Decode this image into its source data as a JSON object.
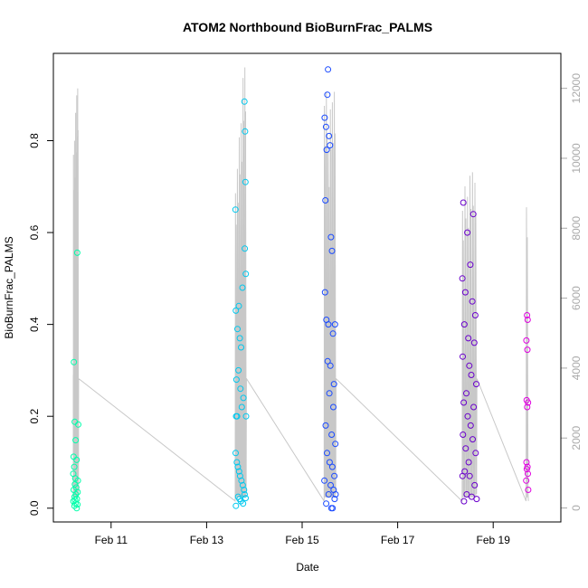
{
  "chart_data": {
    "type": "scatter",
    "title": "ATOM2 Northbound BioBurnFrac_PALMS",
    "xlabel": "Date",
    "ylabel": "BioBurnFrac_PALMS",
    "xlim": [
      "2017-02-09 19:00",
      "2017-02-20 10:00"
    ],
    "ylim": [
      -0.03,
      0.99
    ],
    "y2lim": [
      -400,
      13000
    ],
    "x_ticks": [
      {
        "date": "2017-02-11",
        "label": "Feb 11"
      },
      {
        "date": "2017-02-13",
        "label": "Feb 13"
      },
      {
        "date": "2017-02-15",
        "label": "Feb 15"
      },
      {
        "date": "2017-02-17",
        "label": "Feb 17"
      },
      {
        "date": "2017-02-19",
        "label": "Feb 19"
      }
    ],
    "y_ticks": [
      "0.0",
      "0.2",
      "0.4",
      "0.6",
      "0.8"
    ],
    "y2_ticks": [
      "0",
      "2000",
      "4000",
      "6000",
      "8000",
      "10000",
      "12000"
    ],
    "grid": false,
    "series": [
      {
        "color": "#00ffaa",
        "axis": "left",
        "points": [
          [
            "2017-02-10 05:20",
            0.318
          ],
          [
            "2017-02-10 05:45",
            0.188
          ],
          [
            "2017-02-10 07:00",
            0.556
          ],
          [
            "2017-02-10 07:30",
            0.182
          ],
          [
            "2017-02-10 06:10",
            0.148
          ],
          [
            "2017-02-10 05:10",
            0.112
          ],
          [
            "2017-02-10 06:40",
            0.105
          ],
          [
            "2017-02-10 05:30",
            0.09
          ],
          [
            "2017-02-10 05:00",
            0.075
          ],
          [
            "2017-02-10 06:00",
            0.065
          ],
          [
            "2017-02-10 07:20",
            0.06
          ],
          [
            "2017-02-10 05:50",
            0.052
          ],
          [
            "2017-02-10 06:30",
            0.045
          ],
          [
            "2017-02-10 05:15",
            0.04
          ],
          [
            "2017-02-10 07:10",
            0.035
          ],
          [
            "2017-02-10 06:20",
            0.03
          ],
          [
            "2017-02-10 05:40",
            0.025
          ],
          [
            "2017-02-10 06:50",
            0.02
          ],
          [
            "2017-02-10 05:05",
            0.015
          ],
          [
            "2017-02-10 06:05",
            0.01
          ],
          [
            "2017-02-10 05:35",
            0.005
          ],
          [
            "2017-02-10 06:45",
            0.0
          ],
          [
            "2017-02-10 07:05",
            0.008
          ],
          [
            "2017-02-10 05:55",
            0.018
          ]
        ]
      },
      {
        "color": "#00c8ee",
        "axis": "left",
        "points": [
          [
            "2017-02-13 14:30",
            0.65
          ],
          [
            "2017-02-13 14:40",
            0.43
          ],
          [
            "2017-02-13 15:30",
            0.39
          ],
          [
            "2017-02-13 16:10",
            0.44
          ],
          [
            "2017-02-13 16:40",
            0.37
          ],
          [
            "2017-02-13 17:20",
            0.35
          ],
          [
            "2017-02-13 18:00",
            0.48
          ],
          [
            "2017-02-13 19:00",
            0.885
          ],
          [
            "2017-02-13 19:20",
            0.82
          ],
          [
            "2017-02-13 19:30",
            0.71
          ],
          [
            "2017-02-13 19:10",
            0.565
          ],
          [
            "2017-02-13 19:40",
            0.51
          ],
          [
            "2017-02-13 15:00",
            0.28
          ],
          [
            "2017-02-13 16:00",
            0.3
          ],
          [
            "2017-02-13 17:00",
            0.26
          ],
          [
            "2017-02-13 18:30",
            0.24
          ],
          [
            "2017-02-13 14:50",
            0.2
          ],
          [
            "2017-02-13 15:20",
            0.2
          ],
          [
            "2017-02-13 17:40",
            0.22
          ],
          [
            "2017-02-13 19:50",
            0.2
          ],
          [
            "2017-02-13 14:35",
            0.12
          ],
          [
            "2017-02-13 15:10",
            0.1
          ],
          [
            "2017-02-13 15:40",
            0.09
          ],
          [
            "2017-02-13 16:20",
            0.08
          ],
          [
            "2017-02-13 16:50",
            0.07
          ],
          [
            "2017-02-13 17:30",
            0.06
          ],
          [
            "2017-02-13 18:10",
            0.05
          ],
          [
            "2017-02-13 18:50",
            0.04
          ],
          [
            "2017-02-13 19:05",
            0.03
          ],
          [
            "2017-02-13 15:50",
            0.025
          ],
          [
            "2017-02-13 16:30",
            0.02
          ],
          [
            "2017-02-13 17:10",
            0.015
          ],
          [
            "2017-02-13 18:20",
            0.01
          ],
          [
            "2017-02-13 14:45",
            0.005
          ],
          [
            "2017-02-13 19:35",
            0.022
          ]
        ]
      },
      {
        "color": "#1a4aff",
        "axis": "left",
        "points": [
          [
            "2017-02-15 13:00",
            0.955
          ],
          [
            "2017-02-15 12:40",
            0.9
          ],
          [
            "2017-02-15 11:20",
            0.85
          ],
          [
            "2017-02-15 12:00",
            0.83
          ],
          [
            "2017-02-15 13:30",
            0.81
          ],
          [
            "2017-02-15 14:00",
            0.79
          ],
          [
            "2017-02-15 12:20",
            0.78
          ],
          [
            "2017-02-15 11:40",
            0.67
          ],
          [
            "2017-02-15 14:30",
            0.59
          ],
          [
            "2017-02-15 15:00",
            0.56
          ],
          [
            "2017-02-15 11:30",
            0.47
          ],
          [
            "2017-02-15 12:10",
            0.41
          ],
          [
            "2017-02-15 13:10",
            0.4
          ],
          [
            "2017-02-15 16:30",
            0.4
          ],
          [
            "2017-02-15 15:30",
            0.38
          ],
          [
            "2017-02-15 12:50",
            0.32
          ],
          [
            "2017-02-15 14:10",
            0.31
          ],
          [
            "2017-02-15 16:00",
            0.27
          ],
          [
            "2017-02-15 13:40",
            0.25
          ],
          [
            "2017-02-15 15:40",
            0.22
          ],
          [
            "2017-02-15 11:50",
            0.18
          ],
          [
            "2017-02-15 14:50",
            0.16
          ],
          [
            "2017-02-15 16:40",
            0.14
          ],
          [
            "2017-02-15 12:30",
            0.12
          ],
          [
            "2017-02-15 13:50",
            0.1
          ],
          [
            "2017-02-15 15:10",
            0.09
          ],
          [
            "2017-02-15 16:10",
            0.07
          ],
          [
            "2017-02-15 11:10",
            0.06
          ],
          [
            "2017-02-15 14:20",
            0.05
          ],
          [
            "2017-02-15 15:50",
            0.04
          ],
          [
            "2017-02-15 13:20",
            0.03
          ],
          [
            "2017-02-15 16:20",
            0.02
          ],
          [
            "2017-02-15 12:05",
            0.01
          ],
          [
            "2017-02-15 14:40",
            0.0
          ],
          [
            "2017-02-15 15:20",
            0.0
          ],
          [
            "2017-02-15 16:50",
            0.03
          ]
        ]
      },
      {
        "color": "#6a00cc",
        "axis": "left",
        "points": [
          [
            "2017-02-18 09:00",
            0.665
          ],
          [
            "2017-02-18 14:00",
            0.64
          ],
          [
            "2017-02-18 11:00",
            0.6
          ],
          [
            "2017-02-18 12:30",
            0.53
          ],
          [
            "2017-02-18 08:30",
            0.5
          ],
          [
            "2017-02-18 10:00",
            0.47
          ],
          [
            "2017-02-18 13:30",
            0.45
          ],
          [
            "2017-02-18 15:00",
            0.42
          ],
          [
            "2017-02-18 09:30",
            0.4
          ],
          [
            "2017-02-18 11:30",
            0.37
          ],
          [
            "2017-02-18 14:30",
            0.36
          ],
          [
            "2017-02-18 08:40",
            0.33
          ],
          [
            "2017-02-18 12:00",
            0.31
          ],
          [
            "2017-02-18 13:00",
            0.29
          ],
          [
            "2017-02-18 15:30",
            0.27
          ],
          [
            "2017-02-18 10:30",
            0.25
          ],
          [
            "2017-02-18 09:10",
            0.23
          ],
          [
            "2017-02-18 14:10",
            0.22
          ],
          [
            "2017-02-18 11:10",
            0.2
          ],
          [
            "2017-02-18 12:40",
            0.18
          ],
          [
            "2017-02-18 08:50",
            0.16
          ],
          [
            "2017-02-18 13:40",
            0.15
          ],
          [
            "2017-02-18 10:10",
            0.13
          ],
          [
            "2017-02-18 15:10",
            0.12
          ],
          [
            "2017-02-18 11:40",
            0.1
          ],
          [
            "2017-02-18 09:40",
            0.08
          ],
          [
            "2017-02-18 12:10",
            0.07
          ],
          [
            "2017-02-18 08:35",
            0.07
          ],
          [
            "2017-02-18 14:40",
            0.05
          ],
          [
            "2017-02-18 10:40",
            0.03
          ],
          [
            "2017-02-18 13:10",
            0.025
          ],
          [
            "2017-02-18 15:40",
            0.02
          ],
          [
            "2017-02-18 09:20",
            0.015
          ]
        ]
      },
      {
        "color": "#e000e0",
        "axis": "left",
        "points": [
          [
            "2017-02-19 17:00",
            0.42
          ],
          [
            "2017-02-19 17:20",
            0.41
          ],
          [
            "2017-02-19 16:40",
            0.365
          ],
          [
            "2017-02-19 17:10",
            0.345
          ],
          [
            "2017-02-19 16:50",
            0.235
          ],
          [
            "2017-02-19 17:30",
            0.23
          ],
          [
            "2017-02-19 17:05",
            0.22
          ],
          [
            "2017-02-19 16:45",
            0.1
          ],
          [
            "2017-02-19 17:15",
            0.09
          ],
          [
            "2017-02-19 16:55",
            0.085
          ],
          [
            "2017-02-19 17:25",
            0.075
          ],
          [
            "2017-02-19 16:35",
            0.06
          ],
          [
            "2017-02-19 17:35",
            0.04
          ]
        ]
      }
    ],
    "altitude_series": {
      "color": "#c8c8c8",
      "axis": "right"
    }
  }
}
